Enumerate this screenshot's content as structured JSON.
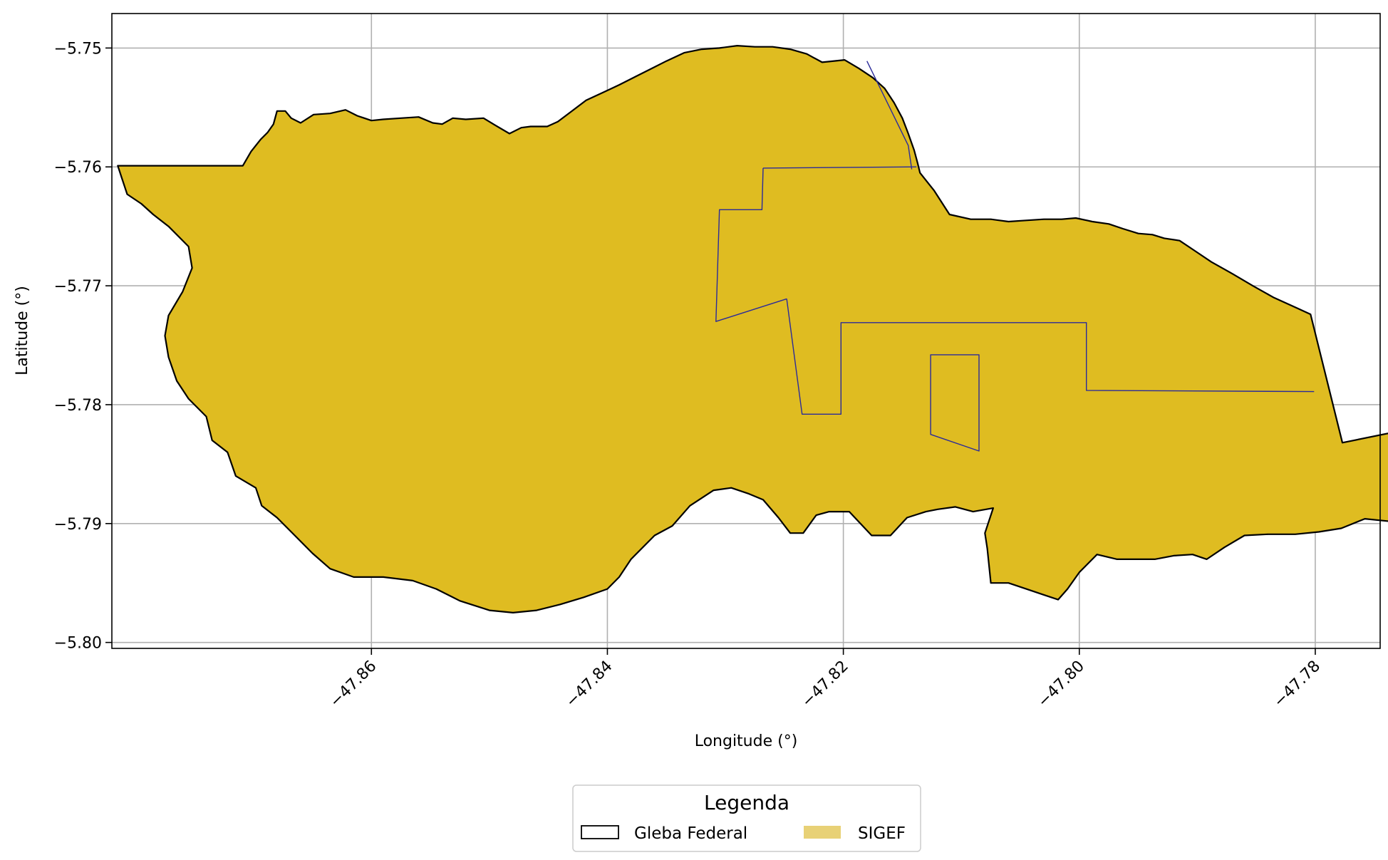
{
  "chart_data": {
    "type": "map",
    "xlabel": "Longitude (°)",
    "ylabel": "Latitude (°)",
    "xlim": [
      -47.882,
      -47.7745
    ],
    "ylim": [
      -5.8005,
      -5.7471
    ],
    "x_ticks": [
      -47.86,
      -47.84,
      -47.82,
      -47.8,
      -47.78
    ],
    "x_tick_labels": [
      "−47.86",
      "−47.84",
      "−47.82",
      "−47.80",
      "−47.78"
    ],
    "y_ticks": [
      -5.75,
      -5.76,
      -5.77,
      -5.78,
      -5.79,
      -5.8
    ],
    "y_tick_labels": [
      "−5.75",
      "−5.76",
      "−5.77",
      "−5.78",
      "−5.79",
      "−5.80"
    ],
    "grid": true,
    "colors": {
      "sigef_fill": "#DFBC21",
      "sigef_legend": "#E8D176",
      "parcel_line": "#2A2A9A",
      "gleba_edge": "#000000",
      "grid": "#b0b0b0"
    },
    "legend": {
      "title": "Legenda",
      "placement": "bottom-center",
      "entries": [
        {
          "label": "Gleba Federal",
          "style": "outline"
        },
        {
          "label": "SIGEF",
          "style": "fill"
        }
      ]
    },
    "layers": [
      {
        "name": "Gleba Federal",
        "kind": "polygon",
        "coords": [
          [
            -47.8709,
            -5.7599
          ],
          [
            -47.8702,
            -5.7587
          ],
          [
            -47.8694,
            -5.7577
          ],
          [
            -47.8688,
            -5.7571
          ],
          [
            -47.8683,
            -5.7564
          ],
          [
            -47.868,
            -5.7553
          ],
          [
            -47.8673,
            -5.7553
          ],
          [
            -47.8668,
            -5.7559
          ],
          [
            -47.866,
            -5.7563
          ],
          [
            -47.8649,
            -5.7556
          ],
          [
            -47.8635,
            -5.7555
          ],
          [
            -47.8622,
            -5.7552
          ],
          [
            -47.8612,
            -5.7557
          ],
          [
            -47.86,
            -5.7561
          ],
          [
            -47.859,
            -5.756
          ],
          [
            -47.8575,
            -5.7559
          ],
          [
            -47.856,
            -5.7558
          ],
          [
            -47.8548,
            -5.7563
          ],
          [
            -47.854,
            -5.7564
          ],
          [
            -47.8531,
            -5.7559
          ],
          [
            -47.852,
            -5.756
          ],
          [
            -47.8505,
            -5.7559
          ],
          [
            -47.8495,
            -5.7565
          ],
          [
            -47.8483,
            -5.7572
          ],
          [
            -47.8473,
            -5.7567
          ],
          [
            -47.8465,
            -5.7566
          ],
          [
            -47.8451,
            -5.7566
          ],
          [
            -47.8442,
            -5.7562
          ],
          [
            -47.843,
            -5.7553
          ],
          [
            -47.8418,
            -5.7544
          ],
          [
            -47.8405,
            -5.7538
          ],
          [
            -47.839,
            -5.7531
          ],
          [
            -47.8376,
            -5.7524
          ],
          [
            -47.8364,
            -5.7518
          ],
          [
            -47.835,
            -5.7511
          ],
          [
            -47.8335,
            -5.7504
          ],
          [
            -47.832,
            -5.7501
          ],
          [
            -47.8305,
            -5.75
          ],
          [
            -47.829,
            -5.7498
          ],
          [
            -47.8275,
            -5.7499
          ],
          [
            -47.826,
            -5.7499
          ],
          [
            -47.8245,
            -5.7501
          ],
          [
            -47.8231,
            -5.7505
          ],
          [
            -47.8218,
            -5.7512
          ],
          [
            -47.8199,
            -5.751
          ],
          [
            -47.8187,
            -5.7517
          ],
          [
            -47.8175,
            -5.7525
          ],
          [
            -47.8165,
            -5.7534
          ],
          [
            -47.8157,
            -5.7546
          ],
          [
            -47.815,
            -5.7559
          ],
          [
            -47.8145,
            -5.7572
          ],
          [
            -47.814,
            -5.7586
          ],
          [
            -47.8137,
            -5.7597
          ],
          [
            -47.8135,
            -5.7605
          ],
          [
            -47.8123,
            -5.762
          ],
          [
            -47.811,
            -5.764
          ],
          [
            -47.8092,
            -5.7644
          ],
          [
            -47.8075,
            -5.7644
          ],
          [
            -47.806,
            -5.7646
          ],
          [
            -47.8045,
            -5.7645
          ],
          [
            -47.803,
            -5.7644
          ],
          [
            -47.8015,
            -5.7644
          ],
          [
            -47.8003,
            -5.7643
          ],
          [
            -47.7989,
            -5.7646
          ],
          [
            -47.7975,
            -5.7648
          ],
          [
            -47.7963,
            -5.7652
          ],
          [
            -47.795,
            -5.7656
          ],
          [
            -47.7938,
            -5.7657
          ],
          [
            -47.7928,
            -5.766
          ],
          [
            -47.7915,
            -5.7662
          ],
          [
            -47.7903,
            -5.767
          ],
          [
            -47.7888,
            -5.768
          ],
          [
            -47.787,
            -5.769
          ],
          [
            -47.7853,
            -5.77
          ],
          [
            -47.7835,
            -5.771
          ],
          [
            -47.7815,
            -5.7719
          ],
          [
            -47.7804,
            -5.7724
          ],
          [
            -47.7777,
            -5.7832
          ],
          [
            -47.7668,
            -5.781
          ],
          [
            -47.7671,
            -5.782
          ],
          [
            -47.7684,
            -5.7836
          ],
          [
            -47.7684,
            -5.7855
          ],
          [
            -47.7671,
            -5.7875
          ],
          [
            -47.7672,
            -5.7887
          ],
          [
            -47.7681,
            -5.7892
          ],
          [
            -47.77,
            -5.7898
          ],
          [
            -47.772,
            -5.79
          ],
          [
            -47.7738,
            -5.7898
          ],
          [
            -47.7758,
            -5.7896
          ],
          [
            -47.7778,
            -5.7904
          ],
          [
            -47.7797,
            -5.7907
          ],
          [
            -47.7817,
            -5.7909
          ],
          [
            -47.784,
            -5.7909
          ],
          [
            -47.786,
            -5.791
          ],
          [
            -47.7877,
            -5.792
          ],
          [
            -47.7892,
            -5.793
          ],
          [
            -47.7904,
            -5.7926
          ],
          [
            -47.792,
            -5.7927
          ],
          [
            -47.7936,
            -5.793
          ],
          [
            -47.795,
            -5.793
          ],
          [
            -47.7968,
            -5.793
          ],
          [
            -47.7985,
            -5.7926
          ],
          [
            -47.8,
            -5.7941
          ],
          [
            -47.801,
            -5.7955
          ],
          [
            -47.8018,
            -5.7964
          ],
          [
            -47.803,
            -5.796
          ],
          [
            -47.8045,
            -5.7955
          ],
          [
            -47.806,
            -5.795
          ],
          [
            -47.8075,
            -5.795
          ],
          [
            -47.8078,
            -5.7921
          ],
          [
            -47.808,
            -5.7908
          ],
          [
            -47.8073,
            -5.7887
          ],
          [
            -47.809,
            -5.789
          ],
          [
            -47.8105,
            -5.7886
          ],
          [
            -47.812,
            -5.7888
          ],
          [
            -47.813,
            -5.789
          ],
          [
            -47.8146,
            -5.7895
          ],
          [
            -47.816,
            -5.791
          ],
          [
            -47.8176,
            -5.791
          ],
          [
            -47.8195,
            -5.789
          ],
          [
            -47.8212,
            -5.789
          ],
          [
            -47.8223,
            -5.7893
          ],
          [
            -47.8234,
            -5.7908
          ],
          [
            -47.8245,
            -5.7908
          ],
          [
            -47.8255,
            -5.7895
          ],
          [
            -47.8268,
            -5.788
          ],
          [
            -47.828,
            -5.7875
          ],
          [
            -47.8295,
            -5.787
          ],
          [
            -47.831,
            -5.7872
          ],
          [
            -47.833,
            -5.7885
          ],
          [
            -47.8345,
            -5.7902
          ],
          [
            -47.836,
            -5.791
          ],
          [
            -47.838,
            -5.793
          ],
          [
            -47.839,
            -5.7945
          ],
          [
            -47.84,
            -5.7955
          ],
          [
            -47.842,
            -5.7962
          ],
          [
            -47.844,
            -5.7968
          ],
          [
            -47.846,
            -5.7973
          ],
          [
            -47.848,
            -5.7975
          ],
          [
            -47.85,
            -5.7973
          ],
          [
            -47.8525,
            -5.7965
          ],
          [
            -47.8545,
            -5.7955
          ],
          [
            -47.8565,
            -5.7948
          ],
          [
            -47.859,
            -5.7945
          ],
          [
            -47.8615,
            -5.7945
          ],
          [
            -47.8635,
            -5.7938
          ],
          [
            -47.865,
            -5.7925
          ],
          [
            -47.8665,
            -5.791
          ],
          [
            -47.868,
            -5.7895
          ],
          [
            -47.8693,
            -5.7885
          ],
          [
            -47.8698,
            -5.787
          ],
          [
            -47.8715,
            -5.786
          ],
          [
            -47.8722,
            -5.784
          ],
          [
            -47.8735,
            -5.783
          ],
          [
            -47.874,
            -5.781
          ],
          [
            -47.8755,
            -5.7795
          ],
          [
            -47.8765,
            -5.778
          ],
          [
            -47.8772,
            -5.776
          ],
          [
            -47.8775,
            -5.7742
          ],
          [
            -47.8772,
            -5.7725
          ],
          [
            -47.876,
            -5.7705
          ],
          [
            -47.8752,
            -5.7685
          ],
          [
            -47.8755,
            -5.7667
          ],
          [
            -47.8772,
            -5.765
          ],
          [
            -47.8785,
            -5.764
          ],
          [
            -47.8795,
            -5.7631
          ],
          [
            -47.8807,
            -5.7623
          ],
          [
            -47.8812,
            -5.7608
          ],
          [
            -47.8815,
            -5.7599
          ],
          [
            -47.8709,
            -5.7599
          ]
        ]
      },
      {
        "name": "SIGEF parcel 1",
        "kind": "polyline",
        "coords": [
          [
            -47.8268,
            -5.7601
          ],
          [
            -47.8138,
            -5.76
          ]
        ]
      },
      {
        "name": "SIGEF parcel 2",
        "kind": "polyline",
        "coords": [
          [
            -47.8248,
            -5.7711
          ],
          [
            -47.8235,
            -5.7808
          ],
          [
            -47.8202,
            -5.7808
          ],
          [
            -47.8202,
            -5.7731
          ],
          [
            -47.7994,
            -5.7731
          ],
          [
            -47.7994,
            -5.7788
          ],
          [
            -47.7801,
            -5.7789
          ]
        ]
      },
      {
        "name": "SIGEF parcel 3",
        "kind": "polygon",
        "coords": [
          [
            -47.8126,
            -5.7758
          ],
          [
            -47.8085,
            -5.7758
          ],
          [
            -47.8085,
            -5.7839
          ],
          [
            -47.8126,
            -5.7825
          ]
        ]
      },
      {
        "name": "SIGEF parcel 4",
        "kind": "polyline",
        "coords": [
          [
            -47.8268,
            -5.7601
          ],
          [
            -47.8269,
            -5.7636
          ],
          [
            -47.8305,
            -5.7636
          ],
          [
            -47.8308,
            -5.773
          ],
          [
            -47.8248,
            -5.7711
          ]
        ]
      },
      {
        "name": "SIGEF parcel 5",
        "kind": "polyline",
        "coords": [
          [
            -47.818,
            -5.7511
          ],
          [
            -47.8145,
            -5.7582
          ],
          [
            -47.8142,
            -5.7602
          ]
        ]
      }
    ]
  }
}
